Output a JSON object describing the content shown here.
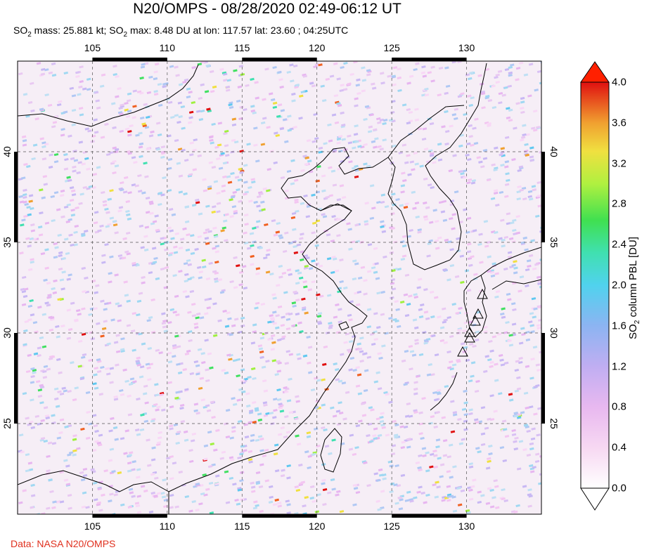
{
  "title": "N20/OMPS - 08/28/2020 02:49-06:12 UT",
  "subtitle": {
    "prefix1": "SO",
    "sub1": "2",
    "mid1": " mass: 25.881 kt; SO",
    "sub2": "2",
    "rest": " max: 8.48 DU at lon: 117.57 lat: 23.60 ; 04:25UTC"
  },
  "credit": "Data: NASA N20/OMPS",
  "map": {
    "lon_range": [
      100,
      135
    ],
    "lat_range": [
      20,
      45
    ],
    "lon_ticks": [
      {
        "value": 105,
        "label": "105"
      },
      {
        "value": 110,
        "label": "110"
      },
      {
        "value": 115,
        "label": "115"
      },
      {
        "value": 120,
        "label": "120"
      },
      {
        "value": 125,
        "label": "125"
      },
      {
        "value": 130,
        "label": "130"
      }
    ],
    "lat_ticks": [
      {
        "value": 25,
        "label": "25"
      },
      {
        "value": 30,
        "label": "30"
      },
      {
        "value": 35,
        "label": "35"
      },
      {
        "value": 40,
        "label": "40"
      }
    ],
    "grid": true,
    "volcano_marker": "triangle-icon",
    "coastline_color": "#000000",
    "background_color": "#f4e9f4"
  },
  "colorbar": {
    "label_main": "SO",
    "label_sub": "2",
    "label_rest": " column PBL [DU]",
    "min": 0.0,
    "max": 4.0,
    "ticks": [
      "4.0",
      "3.6",
      "3.2",
      "2.8",
      "2.4",
      "2.0",
      "1.6",
      "1.2",
      "0.8",
      "0.4",
      "0.0"
    ],
    "colors": [
      "#ffffff",
      "#f5c6f0",
      "#d8b0f0",
      "#a8a8f0",
      "#60c8f0",
      "#40e0c0",
      "#40e060",
      "#a0f040",
      "#f0f040",
      "#f0b030",
      "#f06020",
      "#e01010"
    ],
    "extend_top_color": "#ff2000",
    "extend_bottom_color": "#ffffff"
  }
}
